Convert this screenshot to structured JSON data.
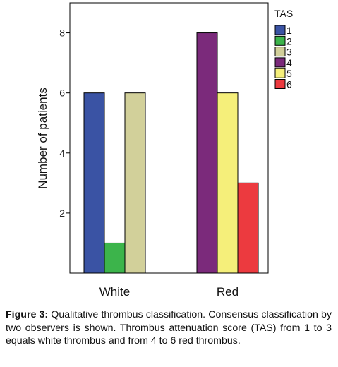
{
  "chart_data": {
    "type": "bar",
    "categories": [
      "White",
      "Red"
    ],
    "ylabel": "Number of patients",
    "xlabel": "",
    "ylim": [
      0,
      9
    ],
    "yticks": [
      2,
      4,
      6,
      8
    ],
    "grid": false,
    "legend_title": "TAS",
    "legend_position": "top-right",
    "series": [
      {
        "name": "1",
        "color": "#3a53a4",
        "values": [
          6,
          null
        ]
      },
      {
        "name": "2",
        "color": "#3cb44b",
        "values": [
          1,
          null
        ]
      },
      {
        "name": "3",
        "color": "#d2d09a",
        "values": [
          6,
          null
        ]
      },
      {
        "name": "4",
        "color": "#7b2a7b",
        "values": [
          null,
          8
        ]
      },
      {
        "name": "5",
        "color": "#f5ef7a",
        "values": [
          null,
          6
        ]
      },
      {
        "name": "6",
        "color": "#ec3a3f",
        "values": [
          null,
          3
        ]
      }
    ]
  },
  "caption": {
    "label": "Figure 3:",
    "text": "Qualitative thrombus classification. Consensus classification by two observers is shown. Thrombus attenuation score (TAS) from 1 to 3 equals white thrombus and from 4 to 6 red thrombus."
  }
}
